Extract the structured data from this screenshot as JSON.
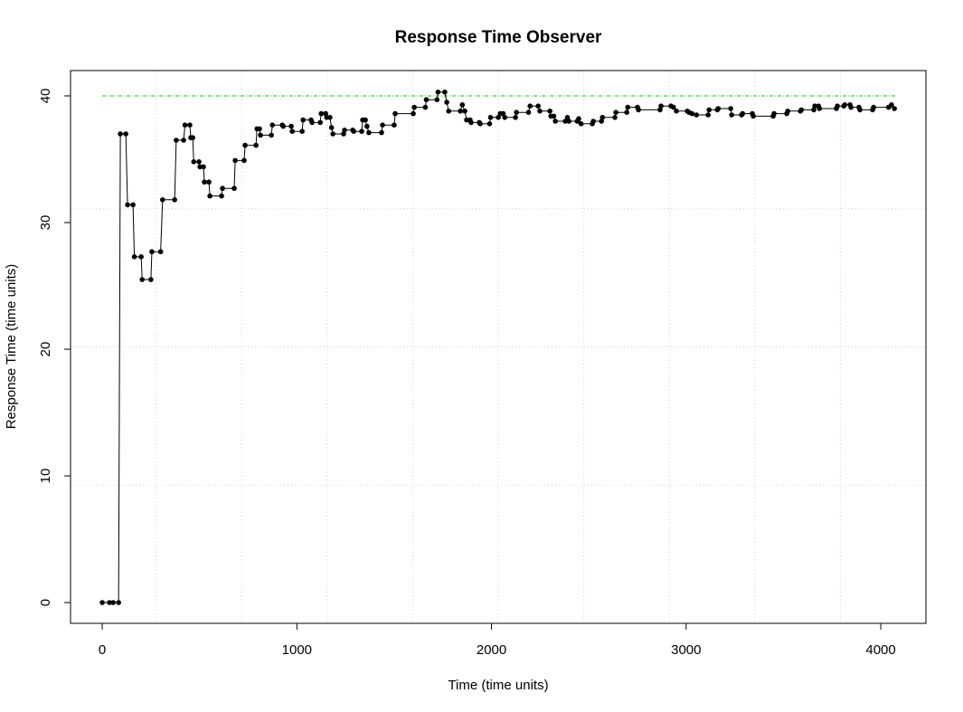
{
  "chart_data": {
    "type": "line",
    "title": "Response Time Observer",
    "xlabel": "Time (time units)",
    "ylabel": "Response Time (time units)",
    "xlim": [
      -163,
      4232
    ],
    "ylim": [
      -1.64,
      42
    ],
    "xticks": [
      0,
      1000,
      2000,
      3000,
      4000
    ],
    "yticks": [
      0,
      10,
      20,
      30,
      40
    ],
    "grid": true,
    "xgrid": [
      276.5,
      716,
      1155.5,
      1595,
      2034.5,
      2474,
      2913.5,
      3353,
      3792.5
    ],
    "ygrid": [
      9.27,
      20.18,
      31.09
    ],
    "reference_line": {
      "y": 40,
      "x": [
        0,
        4075
      ],
      "color": "#00cc00"
    },
    "series": [
      {
        "name": "Response Time",
        "color": "#000000",
        "markers": true,
        "x": [
          0,
          37,
          56,
          84,
          93,
          121,
          130,
          158,
          165,
          200,
          205,
          250,
          255,
          300,
          310,
          372,
          380,
          418,
          425,
          450,
          455,
          465,
          470,
          497,
          502,
          520,
          525,
          548,
          553,
          613,
          618,
          678,
          683,
          729,
          734,
          790,
          795,
          808,
          813,
          869,
          874,
          925,
          930,
          971,
          976,
          1027,
          1032,
          1073,
          1078,
          1120,
          1125,
          1148,
          1153,
          1170,
          1178,
          1185,
          1240,
          1245,
          1287,
          1292,
          1333,
          1338,
          1352,
          1360,
          1370,
          1435,
          1440,
          1500,
          1505,
          1598,
          1603,
          1660,
          1665,
          1720,
          1725,
          1760,
          1770,
          1780,
          1840,
          1850,
          1863,
          1872,
          1890,
          1895,
          1937,
          1942,
          1990,
          1995,
          2035,
          2045,
          2060,
          2068,
          2123,
          2128,
          2190,
          2198,
          2240,
          2248,
          2300,
          2305,
          2320,
          2328,
          2379,
          2390,
          2398,
          2440,
          2448,
          2460,
          2518,
          2523,
          2565,
          2570,
          2634,
          2639,
          2695,
          2700,
          2750,
          2755,
          2866,
          2871,
          2922,
          2935,
          2950,
          3006,
          3015,
          3030,
          3053,
          3113,
          3118,
          3160,
          3165,
          3229,
          3234,
          3285,
          3290,
          3340,
          3345,
          3447,
          3452,
          3517,
          3522,
          3587,
          3592,
          3656,
          3661,
          3680,
          3685,
          3772,
          3777,
          3810,
          3815,
          3842,
          3847,
          3888,
          3893,
          3958,
          3963,
          4040,
          4055,
          4070
        ],
        "values": [
          0,
          0,
          0,
          0,
          37,
          37,
          31.4,
          31.4,
          27.3,
          27.3,
          25.5,
          25.5,
          27.7,
          27.7,
          31.8,
          31.8,
          36.5,
          36.5,
          37.7,
          37.7,
          36.7,
          36.7,
          34.8,
          34.8,
          34.4,
          34.4,
          33.2,
          33.2,
          32.1,
          32.1,
          32.7,
          32.7,
          34.9,
          34.9,
          36.1,
          36.1,
          37.4,
          37.4,
          36.9,
          36.9,
          37.7,
          37.7,
          37.6,
          37.6,
          37.2,
          37.2,
          38.1,
          38.1,
          37.9,
          37.9,
          38.6,
          38.6,
          38.3,
          38.3,
          37.5,
          37,
          37,
          37.3,
          37.3,
          37.2,
          37.2,
          38.1,
          38.1,
          37.6,
          37.1,
          37.1,
          37.7,
          37.7,
          38.6,
          38.6,
          39.1,
          39.1,
          39.7,
          39.7,
          40.3,
          40.3,
          39.5,
          38.8,
          38.8,
          39.3,
          38.8,
          38.1,
          38.1,
          37.9,
          37.9,
          37.8,
          37.8,
          38.3,
          38.3,
          38.6,
          38.6,
          38.3,
          38.3,
          38.7,
          38.7,
          39.2,
          39.2,
          38.8,
          38.8,
          38.4,
          38.4,
          38,
          38,
          38.3,
          38,
          38,
          38.2,
          37.8,
          37.8,
          38,
          38,
          38.3,
          38.3,
          38.7,
          38.7,
          39.1,
          39.1,
          38.9,
          38.9,
          39.2,
          39.2,
          39.1,
          38.8,
          38.8,
          38.7,
          38.6,
          38.5,
          38.5,
          38.9,
          38.9,
          39,
          39,
          38.5,
          38.5,
          38.6,
          38.6,
          38.4,
          38.4,
          38.6,
          38.6,
          38.8,
          38.8,
          38.9,
          38.9,
          39.2,
          39.2,
          39,
          39,
          39.2,
          39.2,
          39.3,
          39.3,
          39.1,
          39.1,
          38.9,
          38.9,
          39.1,
          39.1,
          39.3,
          39
        ]
      }
    ]
  }
}
